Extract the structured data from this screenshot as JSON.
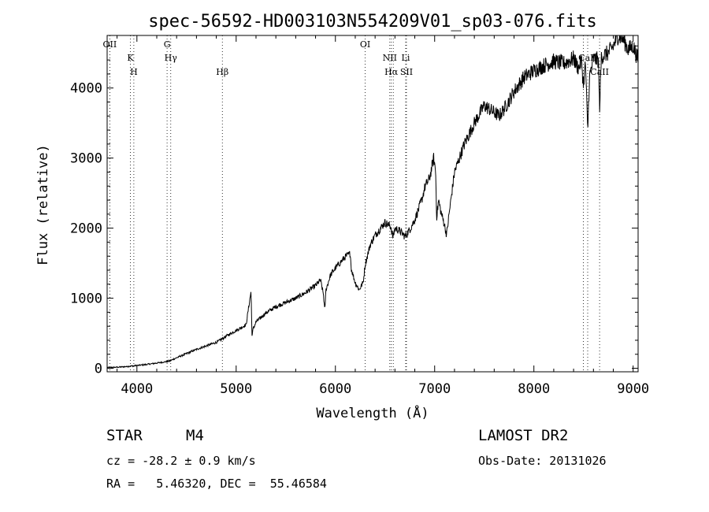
{
  "chart_data": {
    "type": "line",
    "title": "spec-56592-HD003103N554209V01_sp03-076.fits",
    "xlabel": "Wavelength (Å)",
    "ylabel": "Flux (relative)",
    "xlim": [
      3700,
      9050
    ],
    "ylim": [
      -50,
      4750
    ],
    "xticks": [
      4000,
      5000,
      6000,
      7000,
      8000,
      9000
    ],
    "yticks": [
      0,
      1000,
      2000,
      3000,
      4000
    ],
    "grid": false,
    "series": [
      {
        "x": [
          3700,
          3800,
          3900,
          4000,
          4100,
          4200,
          4300,
          4330,
          4400,
          4500,
          4600,
          4700,
          4800,
          4860,
          4900,
          5000,
          5100,
          5150,
          5160,
          5170,
          5200,
          5300,
          5400,
          5500,
          5600,
          5700,
          5800,
          5850,
          5880,
          5893,
          5905,
          5950,
          6000,
          6100,
          6150,
          6160,
          6200,
          6240,
          6280,
          6300,
          6350,
          6400,
          6500,
          6560,
          6580,
          6600,
          6650,
          6700,
          6750,
          6800,
          6870,
          6900,
          6950,
          6990,
          7010,
          7020,
          7040,
          7060,
          7100,
          7120,
          7150,
          7200,
          7300,
          7400,
          7500,
          7600,
          7650,
          7700,
          7750,
          7800,
          7850,
          7900,
          8000,
          8100,
          8200,
          8300,
          8400,
          8450,
          8480,
          8498,
          8520,
          8542,
          8560,
          8600,
          8650,
          8662,
          8680,
          8750,
          8800,
          8850,
          8900,
          8950,
          9000,
          9050
        ],
        "values": [
          10,
          15,
          25,
          40,
          55,
          75,
          95,
          105,
          150,
          210,
          270,
          320,
          370,
          420,
          460,
          540,
          620,
          1100,
          450,
          560,
          660,
          790,
          880,
          940,
          1000,
          1080,
          1180,
          1260,
          1050,
          820,
          1120,
          1330,
          1430,
          1590,
          1640,
          1420,
          1220,
          1120,
          1230,
          1480,
          1760,
          1900,
          2080,
          2020,
          1860,
          2000,
          1960,
          1880,
          1980,
          2120,
          2400,
          2580,
          2720,
          3000,
          2820,
          2150,
          2400,
          2250,
          2040,
          1900,
          2250,
          2800,
          3200,
          3500,
          3750,
          3650,
          3600,
          3700,
          3820,
          3950,
          4050,
          4150,
          4250,
          4320,
          4380,
          4350,
          4420,
          4280,
          4400,
          4050,
          4350,
          3380,
          4150,
          4420,
          4400,
          3700,
          4450,
          4500,
          4600,
          4750,
          4700,
          4550,
          4600,
          4400
        ]
      }
    ],
    "lines": [
      {
        "x": 3727,
        "labels": [
          "OII"
        ]
      },
      {
        "x": 3934,
        "labels": [
          "K"
        ]
      },
      {
        "x": 3969,
        "labels": [
          "H"
        ]
      },
      {
        "x": 4304,
        "labels": [
          "G"
        ]
      },
      {
        "x": 4341,
        "labels": [
          "Hγ"
        ]
      },
      {
        "x": 4861,
        "labels": [
          "Hβ"
        ]
      },
      {
        "x": 6300,
        "labels": [
          "OI"
        ]
      },
      {
        "x": 6548,
        "labels": [
          "NII"
        ]
      },
      {
        "x": 6563,
        "labels": [
          "Hα"
        ]
      },
      {
        "x": 6583,
        "labels": []
      },
      {
        "x": 6708,
        "labels": [
          "Li"
        ]
      },
      {
        "x": 6716,
        "labels": [
          "SII"
        ]
      },
      {
        "x": 8498,
        "labels": []
      },
      {
        "x": 8542,
        "labels": [
          "CaII"
        ]
      },
      {
        "x": 8662,
        "labels": [
          "CaII"
        ]
      }
    ]
  },
  "info": {
    "class": "STAR",
    "subclass": "M4",
    "survey": "LAMOST DR2",
    "cz": "cz = -28.2 ± 0.9 km/s",
    "obs_date": "Obs-Date: 20131026",
    "radec": "RA =   5.46320, DEC =  55.46584"
  }
}
